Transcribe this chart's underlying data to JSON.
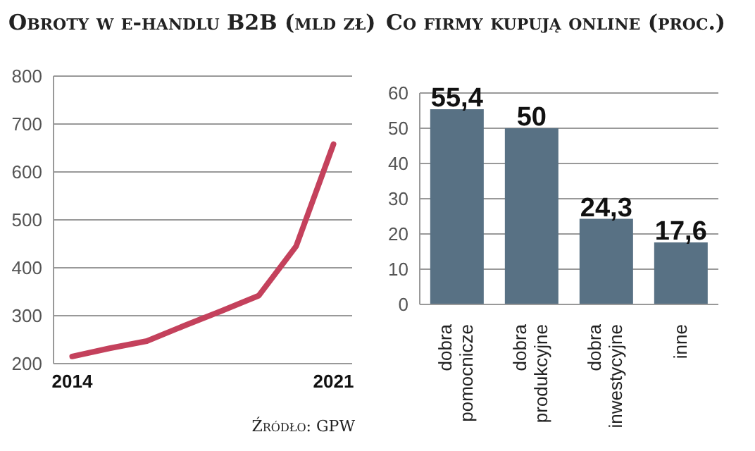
{
  "chart_data": [
    {
      "type": "line",
      "title": "Obroty w e-handlu B2B (mld zł)",
      "x": [
        2014,
        2015,
        2016,
        2017,
        2018,
        2019,
        2020,
        2021
      ],
      "xlim": [
        2013.5,
        2021.5
      ],
      "xticks": [
        2014,
        2021
      ],
      "ylim": [
        200,
        800
      ],
      "yticks": [
        200,
        300,
        400,
        500,
        600,
        700,
        800
      ],
      "series": [
        {
          "color": "#c4415c",
          "values": [
            215,
            232,
            247,
            279,
            310,
            342,
            445,
            658
          ]
        }
      ],
      "grid": "y",
      "marker": "none",
      "line_style": "solid",
      "annotations": [
        "Źródło: GPW"
      ]
    },
    {
      "type": "bar",
      "title": "Co firmy kupują online (proc.)",
      "categories": [
        "dobra pomocnicze",
        "dobra produkcyjne",
        "dobra inwestycyjne",
        "inne"
      ],
      "values": [
        55.4,
        50,
        24.3,
        17.6
      ],
      "value_labels": [
        "55,4",
        "50",
        "24,3",
        "17,6"
      ],
      "color": "#587184",
      "ylim": [
        0,
        60
      ],
      "yticks": [
        0,
        10,
        20,
        30,
        40,
        50,
        60
      ],
      "grid": "y"
    }
  ]
}
